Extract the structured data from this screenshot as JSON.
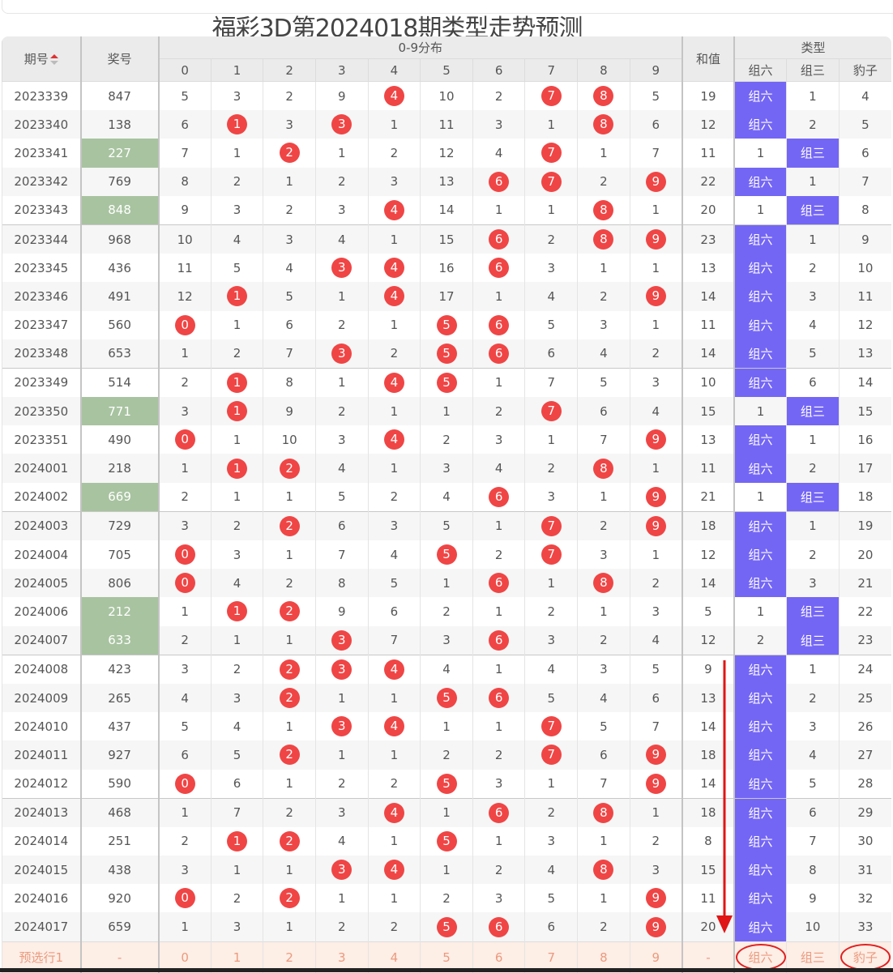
{
  "title": "福彩3D第2024018期类型走势预测",
  "header": {
    "period": "期号",
    "prize": "奖号",
    "dist": "0-9分布",
    "digits": [
      "0",
      "1",
      "2",
      "3",
      "4",
      "5",
      "6",
      "7",
      "8",
      "9"
    ],
    "sum": "和值",
    "type": "类型",
    "types": [
      "组六",
      "组三",
      "豹子"
    ]
  },
  "colors": {
    "ball": "#f04545",
    "group6": "#7466f5",
    "pair": "#a8c3a0"
  },
  "rows": [
    {
      "p": "2023339",
      "n": "847",
      "c": [
        5,
        3,
        2,
        9,
        4,
        10,
        2,
        7,
        8,
        5
      ],
      "h": [
        4,
        7,
        8
      ],
      "s": "19",
      "t": [
        "组六",
        "1",
        "4"
      ]
    },
    {
      "p": "2023340",
      "n": "138",
      "c": [
        6,
        1,
        3,
        3,
        1,
        11,
        3,
        1,
        8,
        6
      ],
      "h": [
        1,
        3,
        8
      ],
      "s": "12",
      "t": [
        "组六",
        "2",
        "5"
      ]
    },
    {
      "p": "2023341",
      "n": "227",
      "g": 1,
      "c": [
        7,
        1,
        2,
        1,
        2,
        12,
        4,
        7,
        1,
        7
      ],
      "h": [
        2,
        7
      ],
      "s": "11",
      "t": [
        "1",
        "组三",
        "6"
      ]
    },
    {
      "p": "2023342",
      "n": "769",
      "c": [
        8,
        2,
        1,
        2,
        3,
        13,
        6,
        7,
        2,
        9
      ],
      "h": [
        6,
        7,
        9
      ],
      "s": "22",
      "t": [
        "组六",
        "1",
        "7"
      ]
    },
    {
      "p": "2023343",
      "n": "848",
      "g": 1,
      "c": [
        9,
        3,
        2,
        3,
        4,
        14,
        1,
        1,
        8,
        1
      ],
      "h": [
        4,
        8
      ],
      "s": "20",
      "t": [
        "1",
        "组三",
        "8"
      ]
    },
    {
      "p": "2023344",
      "n": "968",
      "c": [
        10,
        4,
        3,
        4,
        1,
        15,
        6,
        2,
        8,
        9
      ],
      "h": [
        6,
        8,
        9
      ],
      "s": "23",
      "t": [
        "组六",
        "1",
        "9"
      ]
    },
    {
      "p": "2023345",
      "n": "436",
      "c": [
        11,
        5,
        4,
        3,
        4,
        16,
        6,
        3,
        1,
        1
      ],
      "h": [
        3,
        4,
        6
      ],
      "s": "13",
      "t": [
        "组六",
        "2",
        "10"
      ]
    },
    {
      "p": "2023346",
      "n": "491",
      "c": [
        12,
        1,
        5,
        1,
        4,
        17,
        1,
        4,
        2,
        9
      ],
      "h": [
        1,
        4,
        9
      ],
      "s": "14",
      "t": [
        "组六",
        "3",
        "11"
      ]
    },
    {
      "p": "2023347",
      "n": "560",
      "c": [
        0,
        1,
        6,
        2,
        1,
        5,
        6,
        5,
        3,
        1
      ],
      "h": [
        0,
        5,
        6
      ],
      "s": "11",
      "t": [
        "组六",
        "4",
        "12"
      ]
    },
    {
      "p": "2023348",
      "n": "653",
      "c": [
        1,
        2,
        7,
        3,
        2,
        5,
        6,
        6,
        4,
        2
      ],
      "h": [
        3,
        5,
        6
      ],
      "s": "14",
      "t": [
        "组六",
        "5",
        "13"
      ]
    },
    {
      "p": "2023349",
      "n": "514",
      "c": [
        2,
        1,
        8,
        1,
        4,
        5,
        1,
        7,
        5,
        3
      ],
      "h": [
        1,
        4,
        5
      ],
      "s": "10",
      "t": [
        "组六",
        "6",
        "14"
      ]
    },
    {
      "p": "2023350",
      "n": "771",
      "g": 1,
      "c": [
        3,
        1,
        9,
        2,
        1,
        1,
        2,
        7,
        6,
        4
      ],
      "h": [
        1,
        7
      ],
      "s": "15",
      "t": [
        "1",
        "组三",
        "15"
      ]
    },
    {
      "p": "2023351",
      "n": "490",
      "c": [
        0,
        1,
        10,
        3,
        4,
        2,
        3,
        1,
        7,
        9
      ],
      "h": [
        0,
        4,
        9
      ],
      "s": "13",
      "t": [
        "组六",
        "1",
        "16"
      ]
    },
    {
      "p": "2024001",
      "n": "218",
      "c": [
        1,
        1,
        2,
        4,
        1,
        3,
        4,
        2,
        8,
        1
      ],
      "h": [
        1,
        2,
        8
      ],
      "s": "11",
      "t": [
        "组六",
        "2",
        "17"
      ]
    },
    {
      "p": "2024002",
      "n": "669",
      "g": 1,
      "c": [
        2,
        1,
        1,
        5,
        2,
        4,
        6,
        3,
        1,
        9
      ],
      "h": [
        6,
        9
      ],
      "s": "21",
      "t": [
        "1",
        "组三",
        "18"
      ]
    },
    {
      "p": "2024003",
      "n": "729",
      "c": [
        3,
        2,
        2,
        6,
        3,
        5,
        1,
        7,
        2,
        9
      ],
      "h": [
        2,
        7,
        9
      ],
      "s": "18",
      "t": [
        "组六",
        "1",
        "19"
      ]
    },
    {
      "p": "2024004",
      "n": "705",
      "c": [
        0,
        3,
        1,
        7,
        4,
        5,
        2,
        7,
        3,
        1
      ],
      "h": [
        0,
        5,
        7
      ],
      "s": "12",
      "t": [
        "组六",
        "2",
        "20"
      ]
    },
    {
      "p": "2024005",
      "n": "806",
      "c": [
        0,
        4,
        2,
        8,
        5,
        1,
        6,
        1,
        8,
        2
      ],
      "h": [
        0,
        6,
        8
      ],
      "s": "14",
      "t": [
        "组六",
        "3",
        "21"
      ]
    },
    {
      "p": "2024006",
      "n": "212",
      "g": 1,
      "c": [
        1,
        1,
        2,
        9,
        6,
        2,
        1,
        2,
        1,
        3
      ],
      "h": [
        1,
        2
      ],
      "s": "5",
      "t": [
        "1",
        "组三",
        "22"
      ]
    },
    {
      "p": "2024007",
      "n": "633",
      "g": 1,
      "c": [
        2,
        1,
        1,
        3,
        7,
        3,
        6,
        3,
        2,
        4
      ],
      "h": [
        3,
        6
      ],
      "s": "12",
      "t": [
        "2",
        "组三",
        "23"
      ]
    },
    {
      "p": "2024008",
      "n": "423",
      "c": [
        3,
        2,
        2,
        3,
        4,
        4,
        1,
        4,
        3,
        5
      ],
      "h": [
        2,
        3,
        4
      ],
      "s": "9",
      "t": [
        "组六",
        "1",
        "24"
      ]
    },
    {
      "p": "2024009",
      "n": "265",
      "c": [
        4,
        3,
        2,
        1,
        1,
        5,
        6,
        5,
        4,
        6
      ],
      "h": [
        2,
        5,
        6
      ],
      "s": "13",
      "t": [
        "组六",
        "2",
        "25"
      ]
    },
    {
      "p": "2024010",
      "n": "437",
      "c": [
        5,
        4,
        1,
        3,
        4,
        1,
        1,
        7,
        5,
        7
      ],
      "h": [
        3,
        4,
        7
      ],
      "s": "14",
      "t": [
        "组六",
        "3",
        "26"
      ]
    },
    {
      "p": "2024011",
      "n": "927",
      "c": [
        6,
        5,
        2,
        1,
        1,
        2,
        2,
        7,
        6,
        9
      ],
      "h": [
        2,
        7,
        9
      ],
      "s": "18",
      "t": [
        "组六",
        "4",
        "27"
      ]
    },
    {
      "p": "2024012",
      "n": "590",
      "c": [
        0,
        6,
        1,
        2,
        2,
        5,
        3,
        1,
        7,
        9
      ],
      "h": [
        0,
        5,
        9
      ],
      "s": "14",
      "t": [
        "组六",
        "5",
        "28"
      ]
    },
    {
      "p": "2024013",
      "n": "468",
      "c": [
        1,
        7,
        2,
        3,
        4,
        1,
        6,
        2,
        8,
        1
      ],
      "h": [
        4,
        6,
        8
      ],
      "s": "18",
      "t": [
        "组六",
        "6",
        "29"
      ]
    },
    {
      "p": "2024014",
      "n": "251",
      "c": [
        2,
        1,
        2,
        4,
        1,
        5,
        1,
        3,
        1,
        2
      ],
      "h": [
        1,
        2,
        5
      ],
      "s": "8",
      "t": [
        "组六",
        "7",
        "30"
      ]
    },
    {
      "p": "2024015",
      "n": "438",
      "c": [
        3,
        1,
        1,
        3,
        4,
        1,
        2,
        4,
        8,
        3
      ],
      "h": [
        3,
        4,
        8
      ],
      "s": "15",
      "t": [
        "组六",
        "8",
        "31"
      ]
    },
    {
      "p": "2024016",
      "n": "920",
      "c": [
        0,
        2,
        2,
        1,
        1,
        2,
        3,
        5,
        1,
        9
      ],
      "h": [
        0,
        2,
        9
      ],
      "s": "11",
      "t": [
        "组六",
        "9",
        "32"
      ]
    },
    {
      "p": "2024017",
      "n": "659",
      "c": [
        1,
        3,
        1,
        2,
        2,
        5,
        6,
        6,
        2,
        9
      ],
      "h": [
        5,
        6,
        9
      ],
      "s": "20",
      "t": [
        "组六",
        "10",
        "33"
      ]
    }
  ],
  "footer": {
    "label": "预选行1",
    "prize": "-",
    "digits": [
      "0",
      "1",
      "2",
      "3",
      "4",
      "5",
      "6",
      "7",
      "8",
      "9"
    ],
    "sum": "-",
    "types": [
      "组六",
      "组三",
      "豹子"
    ],
    "circled": [
      0,
      2
    ]
  }
}
